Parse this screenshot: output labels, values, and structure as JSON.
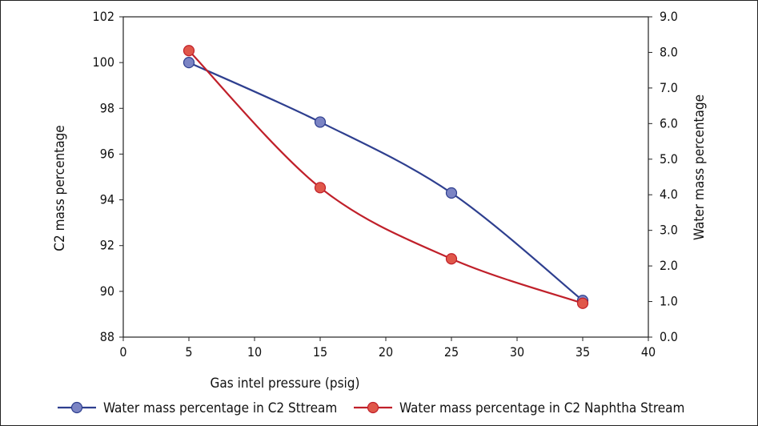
{
  "chart_data": {
    "type": "line",
    "xlabel": "Gas intel pressure (psig)",
    "ylabel_left": "C2 mass percentage",
    "ylabel_right": "Water mass percentage",
    "x_ticks": [
      "0",
      "5",
      "10",
      "15",
      "20",
      "25",
      "30",
      "35",
      "40"
    ],
    "y_left_ticks": [
      "88",
      "90",
      "92",
      "94",
      "96",
      "98",
      "100",
      "102"
    ],
    "y_right_ticks": [
      "0.0",
      "1.0",
      "2.0",
      "3.0",
      "4.0",
      "5.0",
      "6.0",
      "7.0",
      "8.0",
      "9.0"
    ],
    "xlim": [
      0,
      40
    ],
    "ylim_left": [
      88,
      102
    ],
    "ylim_right": [
      0,
      9
    ],
    "legend_position": "bottom",
    "series": [
      {
        "name": "Water mass percentage in C2 Sttream",
        "axis": "left",
        "color": "#2e3f8f",
        "marker_color": "#7b84c4",
        "x": [
          5,
          15,
          25,
          35
        ],
        "y": [
          100.0,
          97.4,
          94.3,
          89.6
        ]
      },
      {
        "name": "Water mass percentage in C2 Naphtha Stream",
        "axis": "right",
        "color": "#c0202a",
        "marker_color": "#e0574a",
        "x": [
          5,
          15,
          25,
          35
        ],
        "y": [
          8.05,
          4.2,
          2.2,
          0.95
        ]
      }
    ]
  }
}
